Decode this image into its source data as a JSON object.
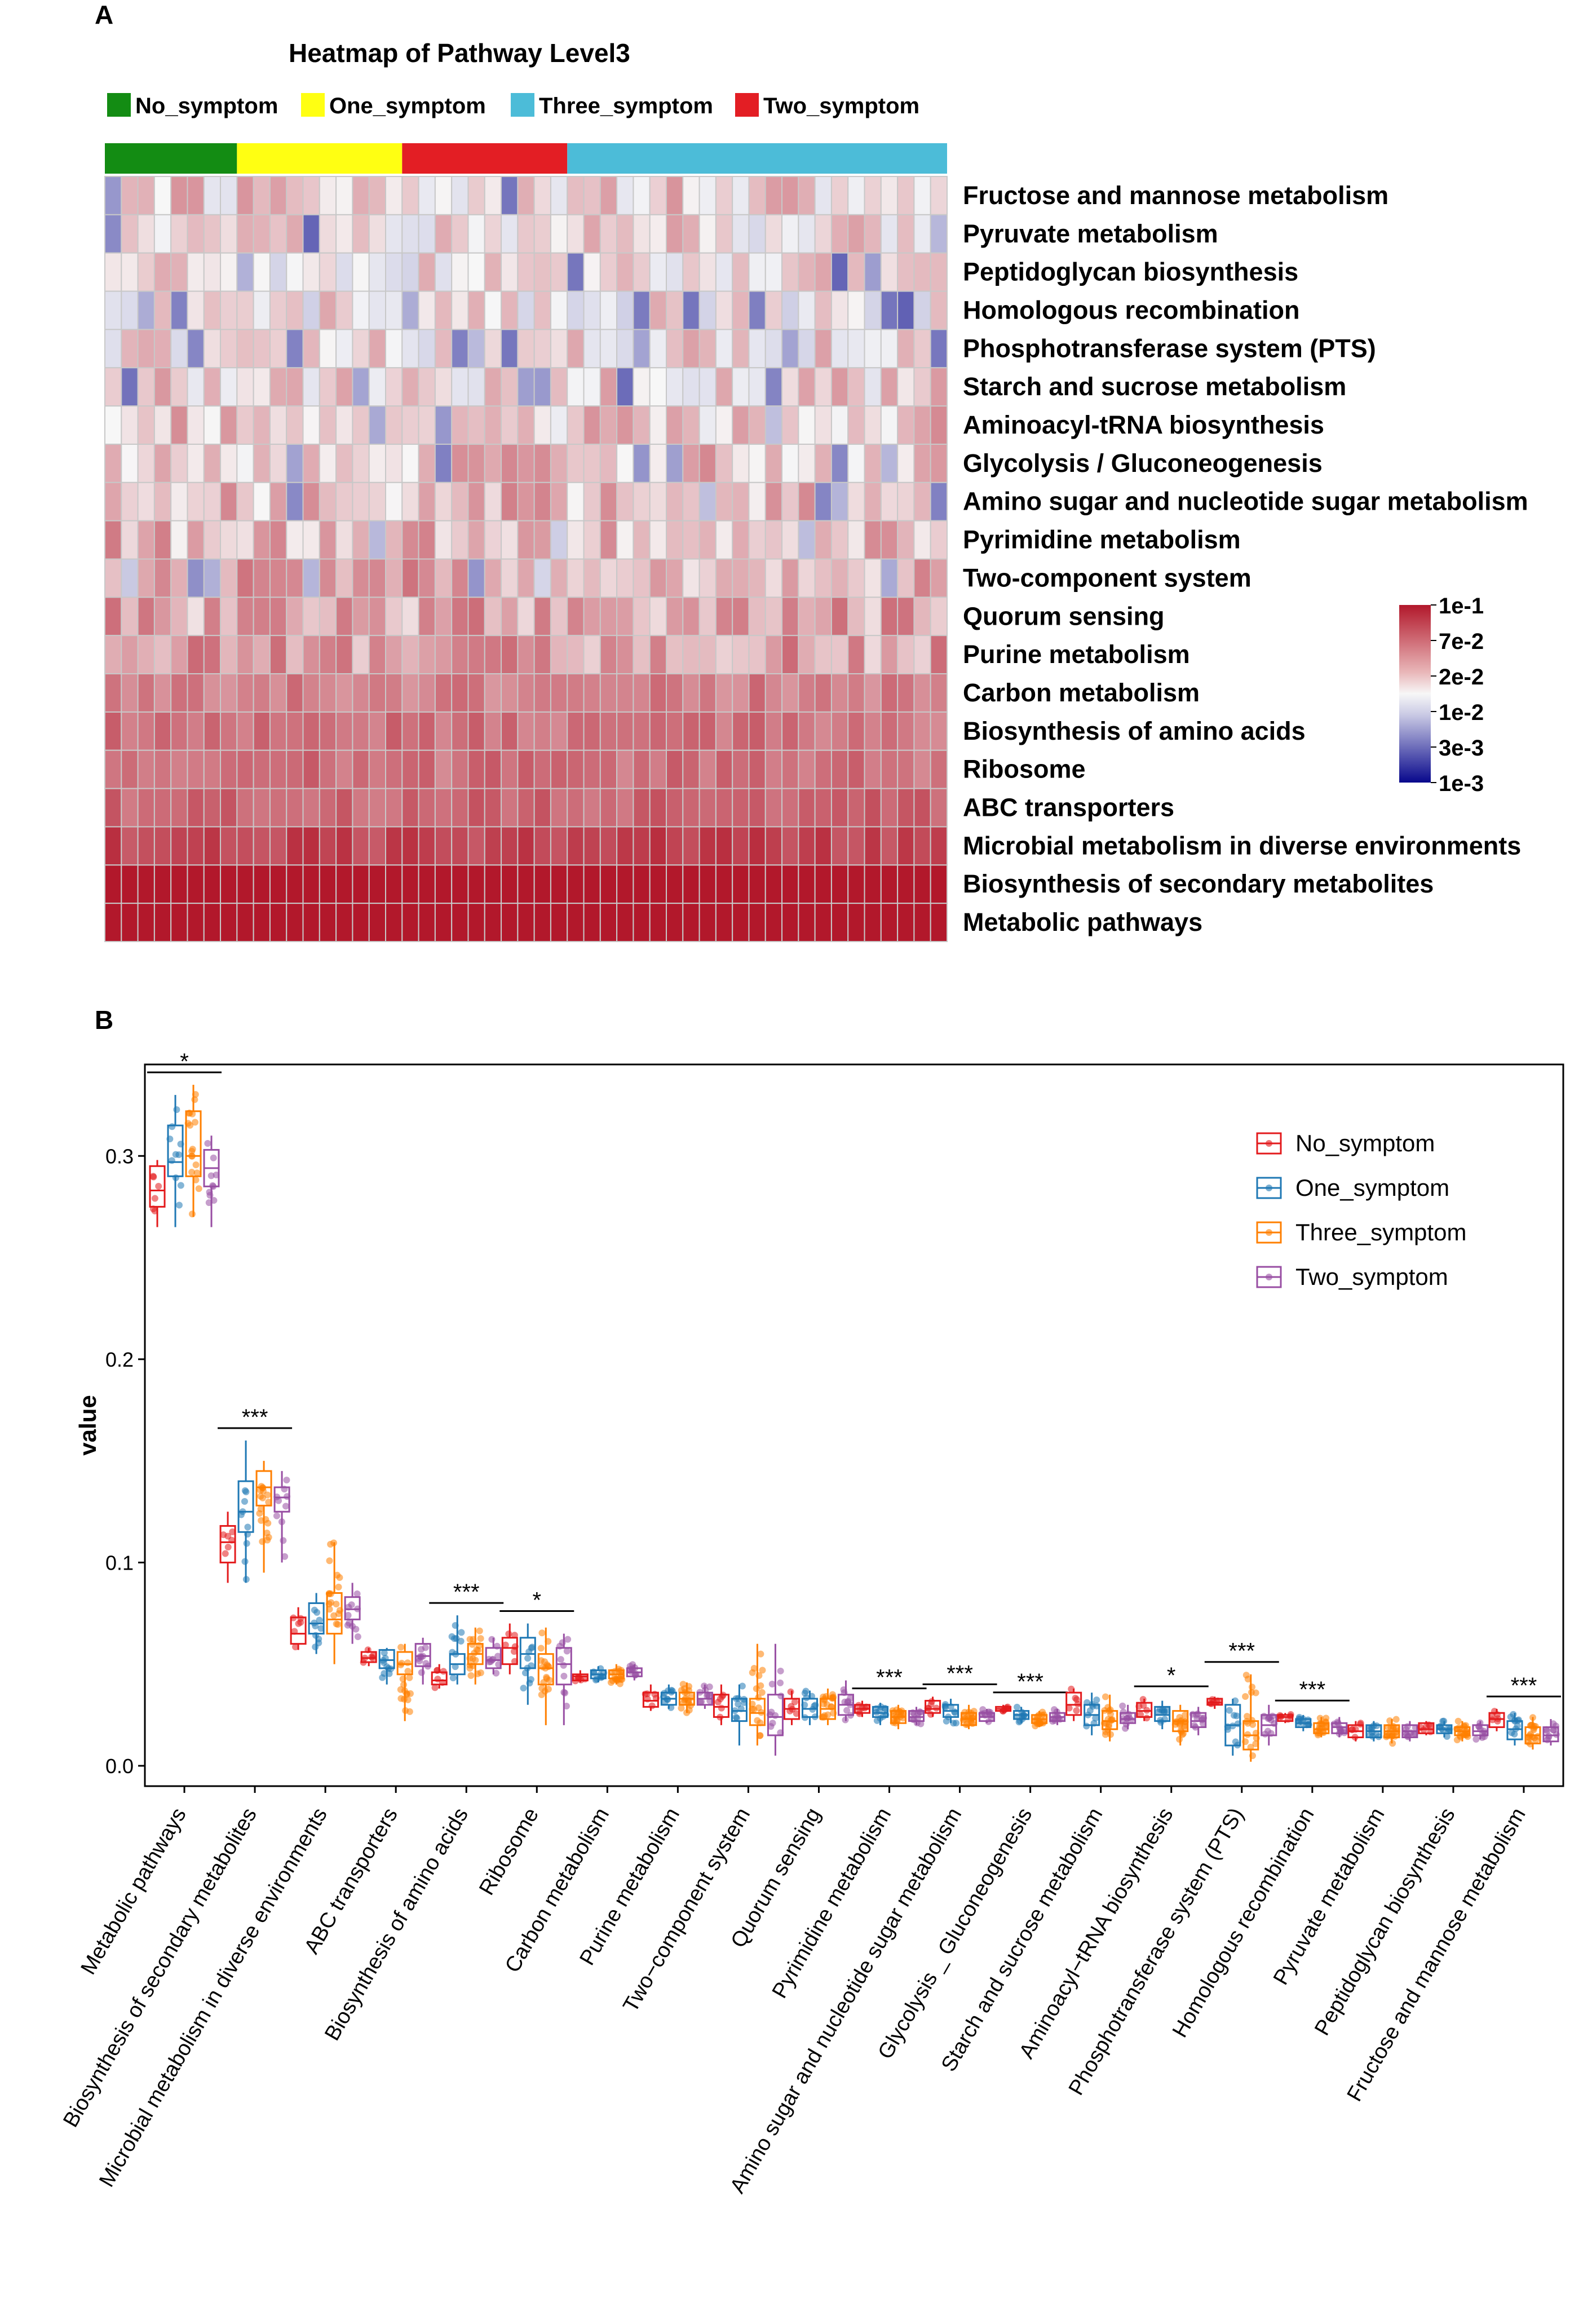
{
  "panelA": {
    "letter": "A",
    "title": "Heatmap of Pathway Level3",
    "groups": [
      {
        "name": "No_symptom",
        "color": "#138c13",
        "n": 8
      },
      {
        "name": "One_symptom",
        "color": "#ffff12",
        "n": 10
      },
      {
        "name": "Two_symptom",
        "color": "#e31e24",
        "n": 10
      },
      {
        "name": "Three_symptom",
        "color": "#4cbcd8",
        "n": 23
      }
    ],
    "legendOrder": [
      "No_symptom",
      "One_symptom",
      "Three_symptom",
      "Two_symptom"
    ],
    "pathways": [
      "Fructose and mannose metabolism",
      "Pyruvate metabolism",
      "Peptidoglycan biosynthesis",
      "Homologous recombination",
      "Phosphotransferase system (PTS)",
      "Starch and sucrose metabolism",
      "Aminoacyl-tRNA biosynthesis",
      "Glycolysis / Gluconeogenesis",
      "Amino sugar and nucleotide sugar metabolism",
      "Pyrimidine metabolism",
      "Two-component system",
      "Quorum sensing",
      "Purine metabolism",
      "Carbon metabolism",
      "Biosynthesis of amino acids",
      "Ribosome",
      "ABC transporters",
      "Microbial metabolism in diverse environments",
      "Biosynthesis of secondary metabolites",
      "Metabolic pathways"
    ],
    "rowMeansLog10": [
      -1.72,
      -1.76,
      -1.77,
      -1.79,
      -1.76,
      -1.72,
      -1.68,
      -1.65,
      -1.64,
      -1.62,
      -1.58,
      -1.57,
      -1.55,
      -1.42,
      -1.38,
      -1.37,
      -1.33,
      -1.18,
      -0.88,
      -0.52
    ],
    "colorScale": {
      "ticks": [
        "1e-1",
        "7e-2",
        "2e-2",
        "1e-2",
        "3e-3",
        "1e-3"
      ],
      "high": "#b2182b",
      "mid": "#f7f7f7",
      "low": "#08088c"
    }
  },
  "panelB": {
    "letter": "B",
    "chart_data": {
      "type": "box",
      "ylabel": "value",
      "ylim": [
        -0.01,
        0.345
      ],
      "yticks": [
        "0.0",
        "0.1",
        "0.2",
        "0.3"
      ],
      "yticksValues": [
        0.0,
        0.1,
        0.2,
        0.3
      ],
      "legend": {
        "position": "top-right",
        "entries": [
          "No_symptom",
          "One_symptom",
          "Three_symptom",
          "Two_symptom"
        ]
      },
      "seriesColors": [
        "#e31a1c",
        "#1f78b4",
        "#ff7f00",
        "#984ea3"
      ],
      "categories": [
        "Metabolic pathways",
        "Biosynthesis of secondary metabolites",
        "Microbial metabolism in diverse environments",
        "ABC transporters",
        "Biosynthesis of amino acids",
        "Ribosome",
        "Carbon metabolism",
        "Purine metabolism",
        "Two−component system",
        "Quorum sensing",
        "Pyrimidine metabolism",
        "Amino sugar and nucleotide sugar metabolism",
        "Glycolysis _ Gluconeogenesis",
        "Starch and sucrose metabolism",
        "Aminoacyl−tRNA biosynthesis",
        "Phosphotransferase system (PTS)",
        "Homologous recombination",
        "Pyruvate metabolism",
        "Peptidoglycan biosynthesis",
        "Fructose and mannose metabolism"
      ],
      "significance": [
        "*",
        "***",
        "",
        "",
        "***",
        "*",
        "",
        "",
        "",
        "",
        "***",
        "***",
        "***",
        "",
        "*",
        "***",
        "***",
        "",
        "",
        "***"
      ],
      "boxes": [
        [
          [
            0.265,
            0.275,
            0.283,
            0.295,
            0.298
          ],
          [
            0.265,
            0.29,
            0.297,
            0.315,
            0.33
          ],
          [
            0.27,
            0.29,
            0.3,
            0.322,
            0.335
          ],
          [
            0.265,
            0.285,
            0.294,
            0.303,
            0.31
          ]
        ],
        [
          [
            0.09,
            0.1,
            0.11,
            0.118,
            0.125
          ],
          [
            0.09,
            0.115,
            0.125,
            0.14,
            0.16
          ],
          [
            0.095,
            0.128,
            0.137,
            0.145,
            0.15
          ],
          [
            0.1,
            0.125,
            0.132,
            0.137,
            0.145
          ]
        ],
        [
          [
            0.057,
            0.06,
            0.065,
            0.073,
            0.078
          ],
          [
            0.055,
            0.065,
            0.07,
            0.08,
            0.085
          ],
          [
            0.05,
            0.065,
            0.072,
            0.085,
            0.11
          ],
          [
            0.06,
            0.072,
            0.077,
            0.083,
            0.09
          ]
        ],
        [
          [
            0.049,
            0.051,
            0.053,
            0.056,
            0.058
          ],
          [
            0.04,
            0.048,
            0.052,
            0.057,
            0.058
          ],
          [
            0.022,
            0.045,
            0.05,
            0.056,
            0.06
          ],
          [
            0.04,
            0.049,
            0.054,
            0.06,
            0.063
          ]
        ],
        [
          [
            0.038,
            0.04,
            0.042,
            0.046,
            0.05
          ],
          [
            0.04,
            0.045,
            0.05,
            0.055,
            0.074
          ],
          [
            0.04,
            0.05,
            0.055,
            0.06,
            0.068
          ],
          [
            0.045,
            0.048,
            0.052,
            0.058,
            0.063
          ]
        ],
        [
          [
            0.045,
            0.05,
            0.058,
            0.063,
            0.07
          ],
          [
            0.03,
            0.048,
            0.055,
            0.063,
            0.07
          ],
          [
            0.02,
            0.04,
            0.048,
            0.055,
            0.068
          ],
          [
            0.02,
            0.04,
            0.05,
            0.058,
            0.065
          ]
        ],
        [
          [
            0.041,
            0.042,
            0.044,
            0.045,
            0.047
          ],
          [
            0.041,
            0.043,
            0.045,
            0.047,
            0.049
          ],
          [
            0.04,
            0.043,
            0.045,
            0.047,
            0.05
          ],
          [
            0.042,
            0.044,
            0.046,
            0.048,
            0.05
          ]
        ],
        [
          [
            0.027,
            0.029,
            0.032,
            0.036,
            0.04
          ],
          [
            0.028,
            0.03,
            0.033,
            0.036,
            0.04
          ],
          [
            0.026,
            0.03,
            0.033,
            0.036,
            0.041
          ],
          [
            0.028,
            0.03,
            0.033,
            0.036,
            0.04
          ]
        ],
        [
          [
            0.02,
            0.024,
            0.029,
            0.035,
            0.04
          ],
          [
            0.01,
            0.022,
            0.027,
            0.033,
            0.04
          ],
          [
            0.01,
            0.02,
            0.026,
            0.033,
            0.06
          ],
          [
            0.005,
            0.015,
            0.024,
            0.035,
            0.06
          ]
        ],
        [
          [
            0.02,
            0.023,
            0.028,
            0.033,
            0.037
          ],
          [
            0.02,
            0.024,
            0.028,
            0.033,
            0.037
          ],
          [
            0.02,
            0.023,
            0.028,
            0.033,
            0.038
          ],
          [
            0.022,
            0.025,
            0.03,
            0.035,
            0.042
          ]
        ],
        [
          [
            0.024,
            0.026,
            0.028,
            0.03,
            0.032
          ],
          [
            0.02,
            0.024,
            0.026,
            0.029,
            0.031
          ],
          [
            0.018,
            0.021,
            0.024,
            0.027,
            0.03
          ],
          [
            0.02,
            0.022,
            0.024,
            0.027,
            0.029
          ]
        ],
        [
          [
            0.024,
            0.026,
            0.028,
            0.032,
            0.034
          ],
          [
            0.021,
            0.024,
            0.027,
            0.03,
            0.033
          ],
          [
            0.018,
            0.02,
            0.023,
            0.026,
            0.03
          ],
          [
            0.021,
            0.022,
            0.024,
            0.026,
            0.028
          ]
        ],
        [
          [
            0.026,
            0.027,
            0.028,
            0.029,
            0.03
          ],
          [
            0.021,
            0.023,
            0.025,
            0.027,
            0.029
          ],
          [
            0.019,
            0.021,
            0.023,
            0.025,
            0.027
          ],
          [
            0.02,
            0.022,
            0.024,
            0.026,
            0.028
          ]
        ],
        [
          [
            0.022,
            0.025,
            0.03,
            0.036,
            0.038
          ],
          [
            0.015,
            0.02,
            0.025,
            0.03,
            0.036
          ],
          [
            0.012,
            0.018,
            0.022,
            0.027,
            0.035
          ],
          [
            0.018,
            0.021,
            0.023,
            0.026,
            0.03
          ]
        ],
        [
          [
            0.022,
            0.024,
            0.027,
            0.031,
            0.033
          ],
          [
            0.018,
            0.022,
            0.025,
            0.029,
            0.032
          ],
          [
            0.01,
            0.017,
            0.022,
            0.027,
            0.03
          ],
          [
            0.015,
            0.019,
            0.022,
            0.026,
            0.029
          ]
        ],
        [
          [
            0.028,
            0.03,
            0.031,
            0.033,
            0.034
          ],
          [
            0.005,
            0.01,
            0.02,
            0.03,
            0.033
          ],
          [
            0.002,
            0.008,
            0.015,
            0.022,
            0.045
          ],
          [
            0.01,
            0.015,
            0.02,
            0.025,
            0.03
          ]
        ],
        [
          [
            0.021,
            0.022,
            0.024,
            0.025,
            0.026
          ],
          [
            0.017,
            0.019,
            0.021,
            0.023,
            0.025
          ],
          [
            0.014,
            0.016,
            0.018,
            0.021,
            0.024
          ],
          [
            0.014,
            0.016,
            0.019,
            0.021,
            0.024
          ]
        ],
        [
          [
            0.012,
            0.014,
            0.017,
            0.02,
            0.022
          ],
          [
            0.012,
            0.014,
            0.017,
            0.02,
            0.022
          ],
          [
            0.011,
            0.014,
            0.017,
            0.02,
            0.023
          ],
          [
            0.012,
            0.014,
            0.017,
            0.02,
            0.022
          ]
        ],
        [
          [
            0.015,
            0.016,
            0.018,
            0.021,
            0.022
          ],
          [
            0.014,
            0.016,
            0.018,
            0.02,
            0.022
          ],
          [
            0.012,
            0.015,
            0.017,
            0.019,
            0.022
          ],
          [
            0.013,
            0.015,
            0.017,
            0.02,
            0.022
          ]
        ],
        [
          [
            0.017,
            0.019,
            0.023,
            0.026,
            0.028
          ],
          [
            0.01,
            0.013,
            0.018,
            0.022,
            0.026
          ],
          [
            0.008,
            0.011,
            0.015,
            0.019,
            0.024
          ],
          [
            0.01,
            0.012,
            0.015,
            0.019,
            0.023
          ]
        ]
      ]
    }
  }
}
